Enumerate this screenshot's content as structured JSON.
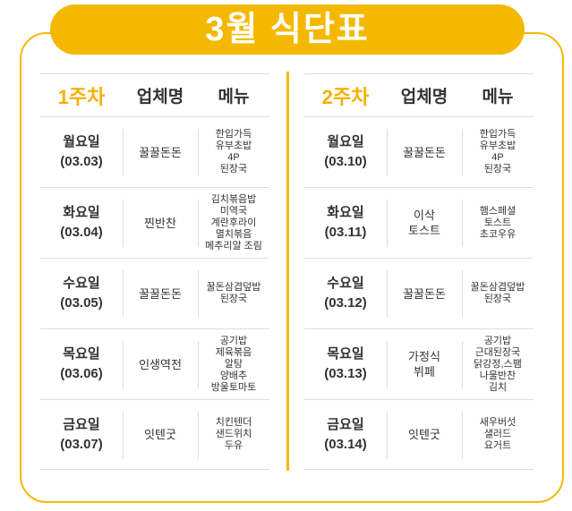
{
  "title": "3월 식단표",
  "columns": {
    "vendor": "업체명",
    "menu": "메뉴"
  },
  "accent": "#F5B800",
  "weeks": [
    {
      "label": "1주차",
      "days": [
        {
          "day": "월요일",
          "date": "(03.03)",
          "vendor": "꿀꿀돈돈",
          "menu": [
            "한입가득",
            "유부초밥",
            "4P",
            "된장국"
          ]
        },
        {
          "day": "화요일",
          "date": "(03.04)",
          "vendor": "찐반찬",
          "menu": [
            "김치볶음밥",
            "미역국",
            "계란후라이",
            "멸치볶음",
            "메추리알 조림"
          ]
        },
        {
          "day": "수요일",
          "date": "(03.05)",
          "vendor": "꿀꿀돈돈",
          "menu": [
            "꿀돈삼겹덮밥",
            "된장국"
          ]
        },
        {
          "day": "목요일",
          "date": "(03.06)",
          "vendor": "인생역전",
          "menu": [
            "공기밥",
            "제육볶음",
            "알탕",
            "양배추",
            "방울토마토"
          ]
        },
        {
          "day": "금요일",
          "date": "(03.07)",
          "vendor": "잇텐굿",
          "menu": [
            "치킨텐더",
            "샌드위치",
            "두유"
          ]
        }
      ]
    },
    {
      "label": "2주차",
      "days": [
        {
          "day": "월요일",
          "date": "(03.10)",
          "vendor": "꿀꿀돈돈",
          "menu": [
            "한입가득",
            "유부초밥",
            "4P",
            "된장국"
          ]
        },
        {
          "day": "화요일",
          "date": "(03.11)",
          "vendor": "이삭\n토스트",
          "menu": [
            "햄스페셜",
            "토스트",
            "초코우유"
          ]
        },
        {
          "day": "수요일",
          "date": "(03.12)",
          "vendor": "꿀꿀돈돈",
          "menu": [
            "꿀돈삼겹덮밥",
            "된장국"
          ]
        },
        {
          "day": "목요일",
          "date": "(03.13)",
          "vendor": "가정식\n뷔페",
          "menu": [
            "공기밥",
            "근대된장국",
            "닭강정,스팸",
            "나물반찬",
            "김치"
          ]
        },
        {
          "day": "금요일",
          "date": "(03.14)",
          "vendor": "잇텐굿",
          "menu": [
            "새우버섯",
            "샐러드",
            "요거트"
          ]
        }
      ]
    }
  ]
}
